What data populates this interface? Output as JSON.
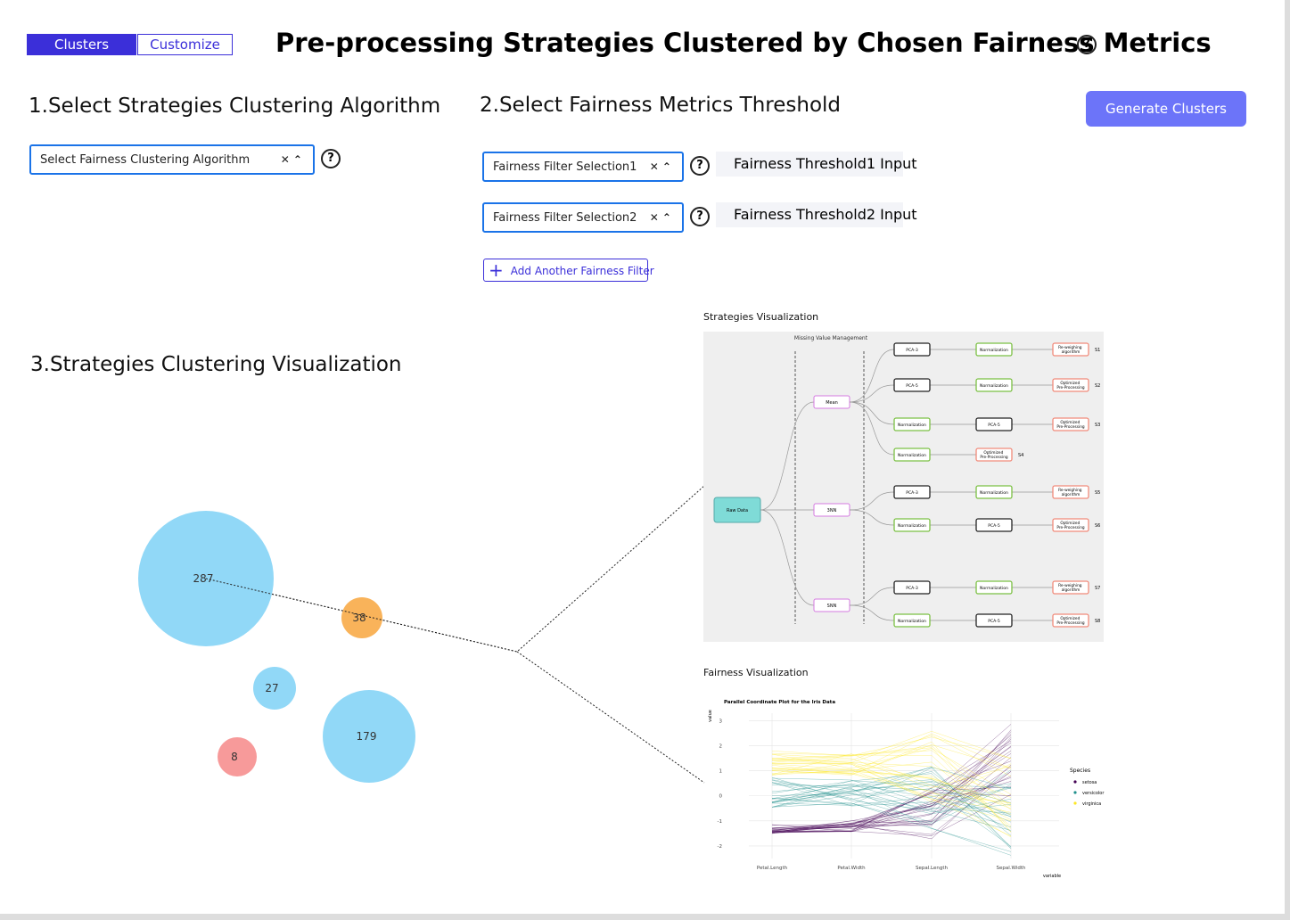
{
  "header": {
    "tabs": [
      "Clusters",
      "Customize"
    ],
    "title": "Pre-processing Strategies Clustered by Chosen Fairness Metrics"
  },
  "section1": {
    "heading": "1.Select Strategies Clustering Algorithm",
    "select": "Select Fairness Clustering Algorithm"
  },
  "section2": {
    "heading": "2.Select Fairness Metrics Threshold",
    "button": "Generate Clusters",
    "filters": [
      {
        "select": "Fairness Filter Selection1",
        "input": "Fairness Threshold1 Input"
      },
      {
        "select": "Fairness Filter Selection2",
        "input": "Fairness Threshold2 Input"
      }
    ],
    "add": "Add Another Fairness Filter"
  },
  "section3": {
    "heading": "3.Strategies Clustering Visualization",
    "clusters": [
      {
        "value": 287,
        "color": "#91d8f7"
      },
      {
        "value": 38,
        "color": "#f9b35a"
      },
      {
        "value": 27,
        "color": "#91d8f7"
      },
      {
        "value": 179,
        "color": "#91d8f7"
      },
      {
        "value": 8,
        "color": "#f79a9a"
      }
    ]
  },
  "strategies": {
    "heading": "Strategies Visualization",
    "stage": "Missing Value Management",
    "root": "Raw Data",
    "groups": [
      {
        "label": "Mean",
        "strategies": [
          {
            "label": "S1",
            "steps": [
              {
                "label": "PCA-3",
                "color": "#222"
              },
              {
                "label": "Normalization",
                "color": "#7bc043"
              },
              {
                "label": "Re-weighing algorithm",
                "color": "#f08a7a"
              }
            ]
          },
          {
            "label": "S2",
            "steps": [
              {
                "label": "PCA-5",
                "color": "#222"
              },
              {
                "label": "Normalization",
                "color": "#7bc043"
              },
              {
                "label": "Optimized Pre-Processing",
                "color": "#f08a7a"
              }
            ]
          },
          {
            "label": "S3",
            "steps": [
              {
                "label": "Normalization",
                "color": "#7bc043"
              },
              {
                "label": "PCA-5",
                "color": "#222"
              },
              {
                "label": "Optimized Pre-Processing",
                "color": "#f08a7a"
              }
            ]
          },
          {
            "label": "S4",
            "steps": [
              {
                "label": "Normalization",
                "color": "#7bc043"
              },
              {
                "label": "Optimized Pre-Processing",
                "color": "#f08a7a"
              }
            ]
          }
        ]
      },
      {
        "label": "3NN",
        "strategies": [
          {
            "label": "S5",
            "steps": [
              {
                "label": "PCA-3",
                "color": "#222"
              },
              {
                "label": "Normalization",
                "color": "#7bc043"
              },
              {
                "label": "Re-weighing algorithm",
                "color": "#f08a7a"
              }
            ]
          },
          {
            "label": "S6",
            "steps": [
              {
                "label": "Normalization",
                "color": "#7bc043"
              },
              {
                "label": "PCA-5",
                "color": "#222"
              },
              {
                "label": "Optimized Pre-Processing",
                "color": "#f08a7a"
              }
            ]
          }
        ]
      },
      {
        "label": "SNN",
        "strategies": [
          {
            "label": "S7",
            "steps": [
              {
                "label": "PCA-3",
                "color": "#222"
              },
              {
                "label": "Normalization",
                "color": "#7bc043"
              },
              {
                "label": "Re-weighing algorithm",
                "color": "#f08a7a"
              }
            ]
          },
          {
            "label": "S8",
            "steps": [
              {
                "label": "Normalization",
                "color": "#7bc043"
              },
              {
                "label": "PCA-5",
                "color": "#222"
              },
              {
                "label": "Optimized Pre-Processing",
                "color": "#f08a7a"
              }
            ]
          }
        ]
      }
    ]
  },
  "fairness": {
    "heading": "Fairness Visualization",
    "chart_data": {
      "type": "parallel",
      "title": "Parallel Coordinate Plot for the Iris Data",
      "y_label": "value",
      "x_label": "variable",
      "categories": [
        "Petal.Length",
        "Petal.Width",
        "Sepal.Length",
        "Sepal.Width"
      ],
      "ylim": [
        -2.5,
        3.3
      ],
      "yticks": [
        -2,
        -1,
        0,
        1,
        2,
        3
      ],
      "grid": true,
      "legend_title": "Species",
      "series": [
        {
          "name": "setosa",
          "color": "#440154"
        },
        {
          "name": "versicolor",
          "color": "#21908c"
        },
        {
          "name": "virginica",
          "color": "#fde725"
        }
      ]
    }
  }
}
